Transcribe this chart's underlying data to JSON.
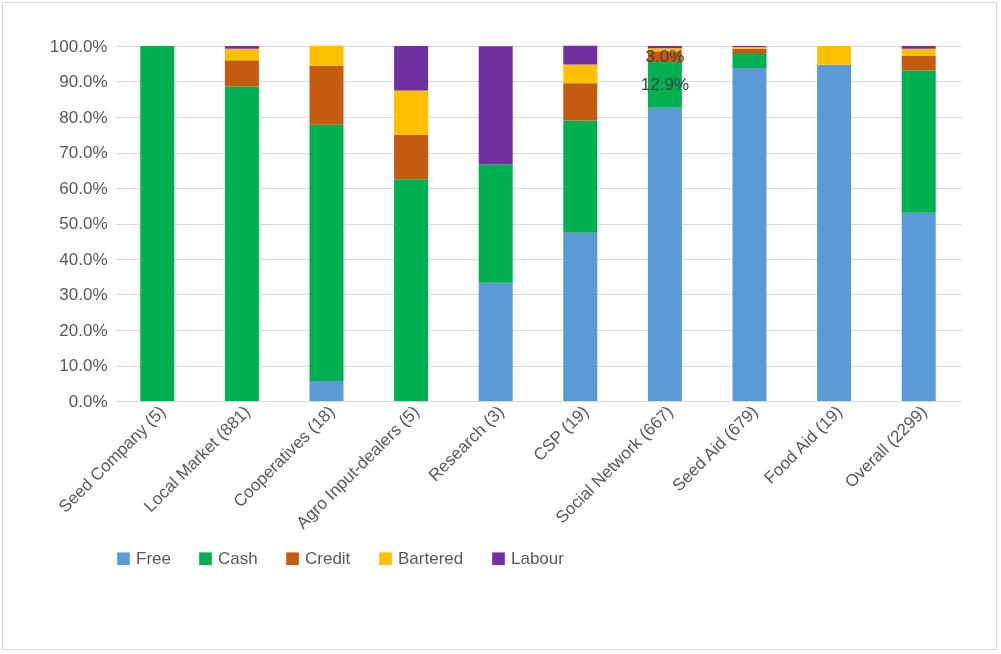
{
  "chart_data": {
    "type": "bar",
    "stacked": true,
    "categories": [
      "Seed Company (5)",
      "Local Market (881)",
      "Cooperatives (18)",
      "Agro Input-dealers (5)",
      "Research (3)",
      "CSP (19)",
      "Social Network (667)",
      "Seed Aid (679)",
      "Food Aid (19)",
      "Overall (2299)"
    ],
    "series": [
      {
        "name": "Free",
        "color": "#5b9bd5",
        "values": [
          0,
          0,
          5.6,
          0,
          33.3,
          47.4,
          82.6,
          93.8,
          94.7,
          53.0
        ]
      },
      {
        "name": "Cash",
        "color": "#00b050",
        "values": [
          100,
          88.6,
          72.2,
          62.5,
          33.3,
          31.6,
          12.9,
          4.2,
          0,
          40.1
        ],
        "value_labels": [
          null,
          null,
          null,
          null,
          null,
          null,
          "12.9%",
          null,
          null,
          null
        ]
      },
      {
        "name": "Credit",
        "color": "#c55a11",
        "values": [
          0,
          7.4,
          16.7,
          12.5,
          0,
          10.5,
          3.0,
          1.2,
          0,
          4.1
        ],
        "value_labels": [
          null,
          null,
          null,
          null,
          null,
          null,
          "3.0%",
          null,
          null,
          null
        ]
      },
      {
        "name": "Bartered",
        "color": "#ffc000",
        "values": [
          0,
          3.2,
          5.6,
          12.5,
          0,
          5.3,
          0.9,
          0.5,
          5.3,
          2.0
        ]
      },
      {
        "name": "Labour",
        "color": "#7030a0",
        "values": [
          0,
          0.8,
          0,
          12.5,
          33.3,
          5.3,
          0.6,
          0.3,
          0,
          0.8
        ]
      }
    ],
    "ylim": [
      0,
      100
    ],
    "yticks": [
      {
        "value": 0,
        "label": "0.0%"
      },
      {
        "value": 10,
        "label": "10.0%"
      },
      {
        "value": 20,
        "label": "20.0%"
      },
      {
        "value": 30,
        "label": "30.0%"
      },
      {
        "value": 40,
        "label": "40.0%"
      },
      {
        "value": 50,
        "label": "50.0%"
      },
      {
        "value": 60,
        "label": "60.0%"
      },
      {
        "value": 70,
        "label": "70.0%"
      },
      {
        "value": 80,
        "label": "80.0%"
      },
      {
        "value": 90,
        "label": "90.0%"
      },
      {
        "value": 100,
        "label": "100.0%"
      }
    ],
    "grid": "y",
    "legend": "bottom"
  }
}
